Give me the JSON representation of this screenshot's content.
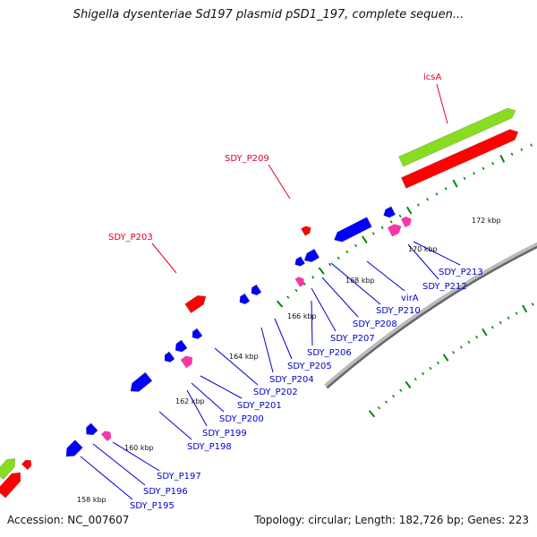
{
  "title": "Shigella dysenteriae Sd197 plasmid pSD1_197, complete sequen...",
  "footer": {
    "accession": "Accession: NC_007607",
    "summary": "Topology: circular; Length: 182,726 bp; Genes: 223"
  },
  "colors": {
    "backbone": "#888888",
    "forward_gene": "#ff0000",
    "reverse_gene": "#0000ff",
    "pseudo_gene": "#ff33aa",
    "highlight_gene": "#88dd22",
    "tick": "#008800",
    "red_label": "#e0002a",
    "blue_label": "#0000cc"
  },
  "kbp_ticks": [
    "158 kbp",
    "160 kbp",
    "162 kbp",
    "164 kbp",
    "166 kbp",
    "168 kbp",
    "170 kbp",
    "172 kbp"
  ],
  "outer_labels": [
    "icsA",
    "SDY_P209",
    "SDY_P203"
  ],
  "inner_labels": [
    "SDY_P213",
    "SDY_P212",
    "virA",
    "SDY_P210",
    "SDY_P208",
    "SDY_P207",
    "SDY_P206",
    "SDY_P205",
    "SDY_P204",
    "SDY_P202",
    "SDY_P201",
    "SDY_P200",
    "SDY_P199",
    "SDY_P198",
    "SDY_P197",
    "SDY_P196",
    "SDY_P195"
  ]
}
